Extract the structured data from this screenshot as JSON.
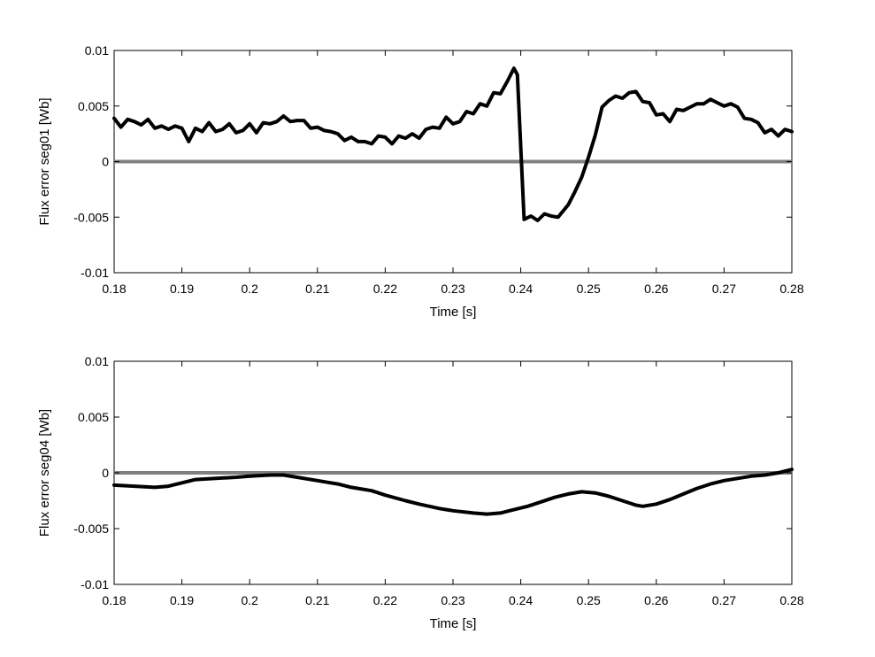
{
  "chart_data": [
    {
      "type": "line",
      "title": "",
      "xlabel": "Time [s]",
      "ylabel": "Flux error seg01 [Wb]",
      "xlim": [
        0.18,
        0.28
      ],
      "ylim": [
        -0.01,
        0.01
      ],
      "xticks": [
        "0.18",
        "0.19",
        "0.2",
        "0.21",
        "0.22",
        "0.23",
        "0.24",
        "0.25",
        "0.26",
        "0.27",
        "0.28"
      ],
      "yticks": [
        "-0.01",
        "-0.005",
        "0",
        "0.005",
        "0.01"
      ],
      "grid": false,
      "reference_line": {
        "y": 0,
        "color": "#808080"
      },
      "series": [
        {
          "color": "#000000",
          "x": [
            0.18,
            0.181,
            0.182,
            0.183,
            0.184,
            0.185,
            0.186,
            0.187,
            0.188,
            0.189,
            0.19,
            0.191,
            0.192,
            0.193,
            0.194,
            0.195,
            0.196,
            0.197,
            0.198,
            0.199,
            0.2,
            0.201,
            0.202,
            0.203,
            0.204,
            0.205,
            0.206,
            0.207,
            0.208,
            0.209,
            0.21,
            0.211,
            0.212,
            0.213,
            0.214,
            0.215,
            0.216,
            0.217,
            0.218,
            0.219,
            0.22,
            0.221,
            0.222,
            0.223,
            0.224,
            0.225,
            0.226,
            0.227,
            0.228,
            0.229,
            0.23,
            0.231,
            0.232,
            0.233,
            0.234,
            0.235,
            0.236,
            0.237,
            0.238,
            0.239,
            0.2395,
            0.2405,
            0.2415,
            0.2425,
            0.2435,
            0.2445,
            0.2455,
            0.247,
            0.248,
            0.249,
            0.25,
            0.251,
            0.252,
            0.253,
            0.254,
            0.255,
            0.256,
            0.257,
            0.258,
            0.259,
            0.26,
            0.261,
            0.262,
            0.263,
            0.264,
            0.265,
            0.266,
            0.267,
            0.268,
            0.269,
            0.27,
            0.271,
            0.272,
            0.273,
            0.274,
            0.275,
            0.276,
            0.277,
            0.278,
            0.279,
            0.28
          ],
          "y": [
            0.0039,
            0.0031,
            0.0038,
            0.0036,
            0.0033,
            0.0038,
            0.003,
            0.0032,
            0.0029,
            0.0032,
            0.003,
            0.0018,
            0.003,
            0.0027,
            0.0035,
            0.0027,
            0.0029,
            0.0034,
            0.0026,
            0.0028,
            0.0034,
            0.0026,
            0.0035,
            0.0034,
            0.0036,
            0.0041,
            0.0036,
            0.0037,
            0.0037,
            0.003,
            0.0031,
            0.0028,
            0.0027,
            0.0025,
            0.0019,
            0.0022,
            0.0018,
            0.0018,
            0.0016,
            0.0023,
            0.0022,
            0.0016,
            0.0023,
            0.0021,
            0.0025,
            0.0021,
            0.0029,
            0.0031,
            0.003,
            0.004,
            0.0034,
            0.0036,
            0.0045,
            0.0043,
            0.0052,
            0.005,
            0.0062,
            0.0061,
            0.0072,
            0.0084,
            0.0078,
            -0.0052,
            -0.0049,
            -0.0053,
            -0.0047,
            -0.0049,
            -0.005,
            -0.0039,
            -0.0027,
            -0.0014,
            0.0004,
            0.0024,
            0.0049,
            0.0055,
            0.0059,
            0.0057,
            0.0062,
            0.0063,
            0.0054,
            0.0053,
            0.0042,
            0.0043,
            0.0036,
            0.0047,
            0.0046,
            0.0049,
            0.0052,
            0.0052,
            0.0056,
            0.0053,
            0.005,
            0.0052,
            0.0049,
            0.0039,
            0.0038,
            0.0035,
            0.0026,
            0.0029,
            0.0023,
            0.0029,
            0.0027
          ]
        }
      ]
    },
    {
      "type": "line",
      "title": "",
      "xlabel": "Time [s]",
      "ylabel": "Flux error seg04 [Wb]",
      "xlim": [
        0.18,
        0.28
      ],
      "ylim": [
        -0.01,
        0.01
      ],
      "xticks": [
        "0.18",
        "0.19",
        "0.2",
        "0.21",
        "0.22",
        "0.23",
        "0.24",
        "0.25",
        "0.26",
        "0.27",
        "0.28"
      ],
      "yticks": [
        "-0.01",
        "-0.005",
        "0",
        "0.005",
        "0.01"
      ],
      "grid": false,
      "reference_line": {
        "y": 0,
        "color": "#808080"
      },
      "series": [
        {
          "color": "#000000",
          "x": [
            0.18,
            0.183,
            0.186,
            0.188,
            0.19,
            0.192,
            0.195,
            0.198,
            0.2,
            0.203,
            0.205,
            0.207,
            0.21,
            0.213,
            0.215,
            0.218,
            0.22,
            0.223,
            0.225,
            0.228,
            0.23,
            0.233,
            0.235,
            0.237,
            0.239,
            0.241,
            0.243,
            0.245,
            0.247,
            0.249,
            0.251,
            0.253,
            0.255,
            0.257,
            0.258,
            0.26,
            0.262,
            0.264,
            0.266,
            0.268,
            0.27,
            0.272,
            0.274,
            0.276,
            0.278,
            0.28
          ],
          "y": [
            -0.0011,
            -0.0012,
            -0.0013,
            -0.0012,
            -0.0009,
            -0.0006,
            -0.0005,
            -0.0004,
            -0.0003,
            -0.0002,
            -0.0002,
            -0.0004,
            -0.0007,
            -0.001,
            -0.0013,
            -0.0016,
            -0.002,
            -0.0025,
            -0.0028,
            -0.0032,
            -0.0034,
            -0.0036,
            -0.0037,
            -0.0036,
            -0.0033,
            -0.003,
            -0.0026,
            -0.0022,
            -0.0019,
            -0.0017,
            -0.0018,
            -0.0021,
            -0.0025,
            -0.0029,
            -0.003,
            -0.0028,
            -0.0024,
            -0.0019,
            -0.0014,
            -0.001,
            -0.0007,
            -0.0005,
            -0.0003,
            -0.0002,
            0.0,
            0.0003
          ]
        }
      ]
    }
  ]
}
